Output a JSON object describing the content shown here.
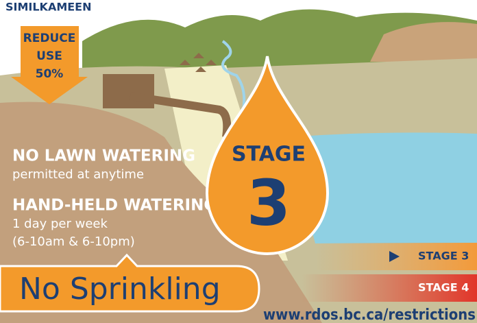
{
  "header": {
    "org": "SIMILKAMEEN"
  },
  "arrow": {
    "lines": [
      "REDUCE",
      "USE",
      "50%"
    ]
  },
  "rules": [
    {
      "title": "NO LAWN WATERING",
      "details": [
        "permitted at anytime"
      ]
    },
    {
      "title": "HAND-HELD WATERING",
      "details": [
        "1 day per week",
        "(6-10am & 6-10pm)"
      ]
    }
  ],
  "drop": {
    "label": "STAGE",
    "number": "3"
  },
  "stages": [
    "STAGE 3",
    "STAGE 4"
  ],
  "banner": "No Sprinkling",
  "url": "www.rdos.bc.ca/restrictions"
}
